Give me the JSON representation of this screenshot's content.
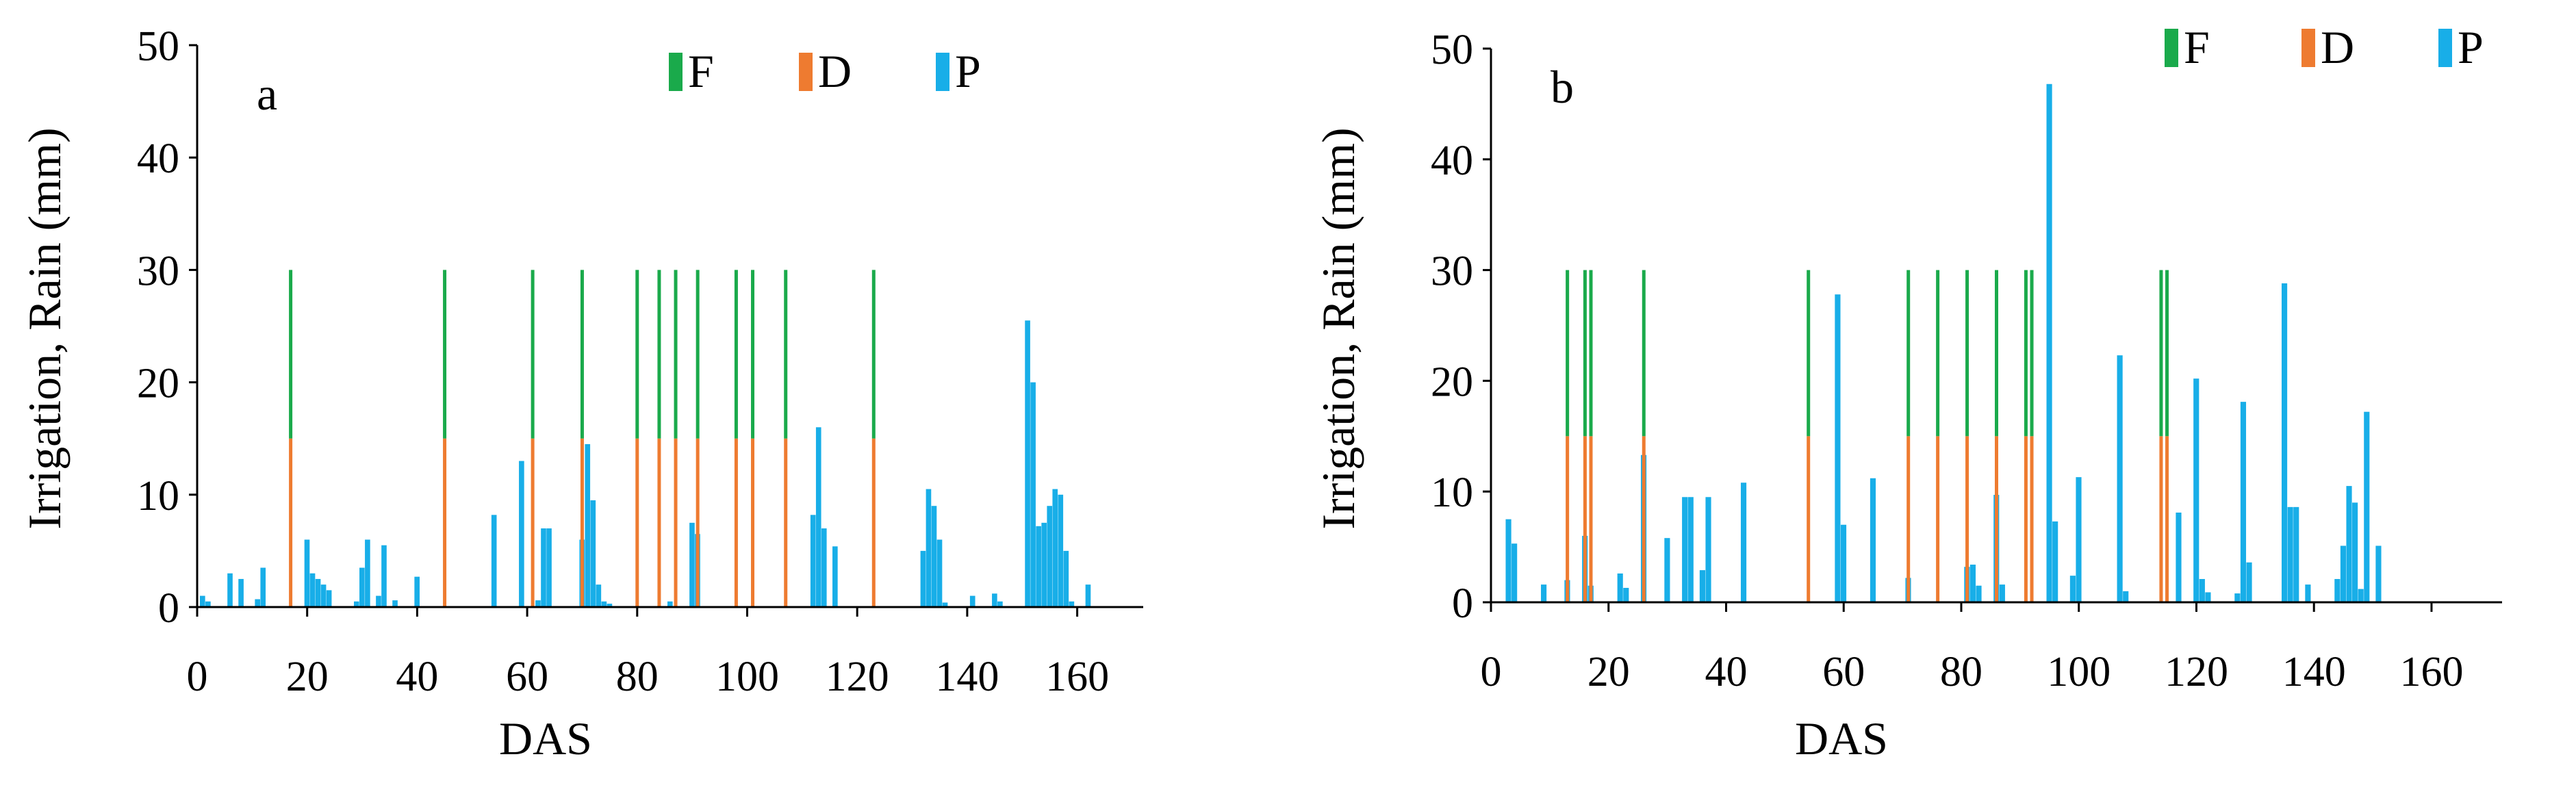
{
  "colors": {
    "F": "#1aaa4b",
    "D": "#ee7b30",
    "P": "#18aee8",
    "axis": "#000000"
  },
  "chart_data": [
    {
      "type": "bar",
      "panel_label": "a",
      "xlabel": "DAS",
      "ylabel": "Irrigation, Rain (mm)",
      "xlim": [
        0,
        172
      ],
      "ylim": [
        0,
        50
      ],
      "xticks": [
        "0",
        "20",
        "40",
        "60",
        "80",
        "100",
        "120",
        "140",
        "160"
      ],
      "yticks": [
        "0",
        "10",
        "20",
        "30",
        "40",
        "50"
      ],
      "legend_position": "top-right",
      "series": [
        {
          "name": "F",
          "x": [
            17,
            45,
            61,
            70,
            80,
            84,
            87,
            91,
            98,
            101,
            107,
            123
          ],
          "values": [
            15,
            15,
            15,
            15,
            15,
            15,
            15,
            15,
            15,
            15,
            15,
            15
          ]
        },
        {
          "name": "D",
          "x": [
            17,
            45,
            61,
            70,
            80,
            84,
            87,
            91,
            98,
            101,
            107,
            123
          ],
          "values": [
            15,
            15,
            15,
            15,
            15,
            15,
            15,
            15,
            15,
            15,
            15,
            15
          ]
        },
        {
          "name": "P",
          "x": [
            1,
            2,
            6,
            8,
            11,
            12,
            20,
            21,
            22,
            23,
            24,
            29,
            30,
            31,
            33,
            34,
            36,
            40,
            54,
            59,
            62,
            63,
            64,
            70,
            71,
            72,
            73,
            74,
            75,
            86,
            90,
            91,
            112,
            113,
            114,
            116,
            132,
            133,
            134,
            135,
            136,
            141,
            145,
            146,
            151,
            152,
            153,
            154,
            155,
            156,
            157,
            158,
            159,
            162
          ],
          "values": [
            1,
            0.5,
            3,
            2.5,
            0.7,
            3.5,
            6,
            3,
            2.5,
            2,
            1.5,
            0.5,
            3.5,
            6,
            1,
            5.5,
            0.6,
            2.7,
            8.2,
            13,
            0.6,
            7,
            7,
            6,
            14.5,
            9.5,
            2,
            0.5,
            0.3,
            0.5,
            7.5,
            6.5,
            8.2,
            16,
            7,
            5.4,
            5,
            10.5,
            9,
            6,
            0.4,
            1,
            1.2,
            0.5,
            25.5,
            20,
            7.2,
            7.5,
            9,
            10.5,
            10,
            5,
            0.5,
            2
          ]
        }
      ]
    },
    {
      "type": "bar",
      "panel_label": "b",
      "xlabel": "DAS",
      "ylabel": "Irrigation, Rain (mm)",
      "xlim": [
        0,
        172
      ],
      "ylim": [
        0,
        50
      ],
      "xticks": [
        "0",
        "20",
        "40",
        "60",
        "80",
        "100",
        "120",
        "140",
        "160"
      ],
      "yticks": [
        "0",
        "10",
        "20",
        "30",
        "40",
        "50"
      ],
      "legend_position": "top-right",
      "series": [
        {
          "name": "F",
          "x": [
            13,
            16,
            17,
            26,
            54,
            71,
            76,
            81,
            86,
            91,
            92,
            114,
            115
          ],
          "values": [
            15,
            15,
            15,
            15,
            15,
            15,
            15,
            15,
            15,
            15,
            15,
            15,
            15
          ]
        },
        {
          "name": "D",
          "x": [
            13,
            16,
            17,
            26,
            54,
            71,
            76,
            81,
            86,
            91,
            92,
            114,
            115
          ],
          "values": [
            15,
            15,
            15,
            15,
            15,
            15,
            15,
            15,
            15,
            15,
            15,
            15,
            15
          ]
        },
        {
          "name": "P",
          "x": [
            3,
            4,
            9,
            13,
            16,
            17,
            22,
            23,
            26,
            30,
            33,
            34,
            36,
            37,
            43,
            59,
            60,
            65,
            71,
            81,
            82,
            83,
            86,
            87,
            95,
            96,
            99,
            100,
            107,
            108,
            117,
            120,
            121,
            122,
            127,
            128,
            129,
            135,
            136,
            137,
            139,
            144,
            145,
            146,
            147,
            148,
            149,
            151
          ],
          "values": [
            7.5,
            5.3,
            1.6,
            2,
            6,
            1.5,
            2.6,
            1.3,
            13.3,
            5.8,
            9.5,
            9.5,
            2.9,
            9.5,
            10.8,
            27.8,
            7,
            11.2,
            2.2,
            3.2,
            3.4,
            1.5,
            9.7,
            1.6,
            46.8,
            7.3,
            2.4,
            11.3,
            22.3,
            1,
            8.1,
            20.2,
            2.1,
            0.9,
            0.8,
            18.1,
            3.6,
            28.8,
            8.6,
            8.6,
            1.6,
            2.1,
            5.1,
            10.5,
            9,
            1.2,
            17.2,
            5.1
          ]
        }
      ]
    }
  ]
}
